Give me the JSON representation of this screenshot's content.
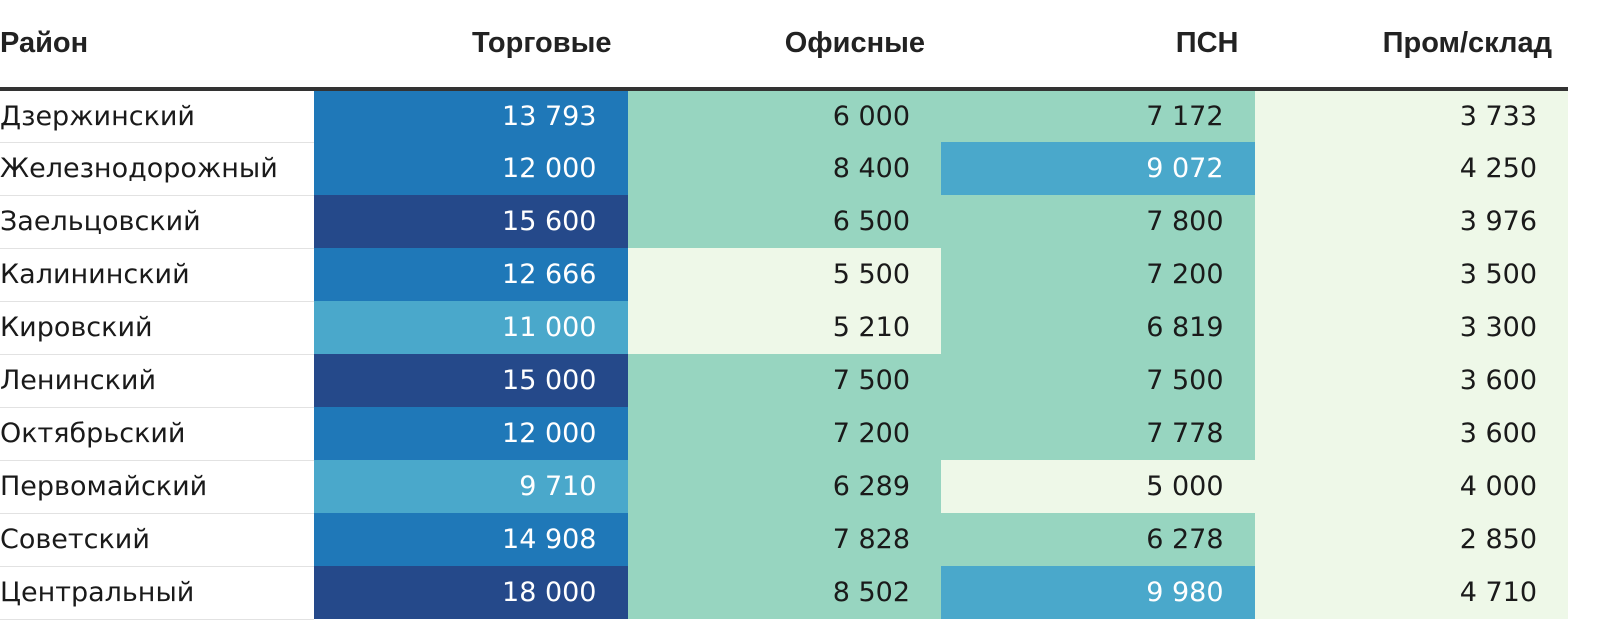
{
  "chart_data": {
    "type": "table",
    "columns": [
      "Район",
      "Торговые",
      "Офисные",
      "ПСН",
      "Пром/склад"
    ],
    "rows": [
      {
        "district": "Дзержинский",
        "values": [
          13793,
          6000,
          7172,
          3733
        ],
        "labels": [
          "13 793",
          "6 000",
          "7 172",
          "3 733"
        ]
      },
      {
        "district": "Железнодорожный",
        "values": [
          12000,
          8400,
          9072,
          4250
        ],
        "labels": [
          "12 000",
          "8 400",
          "9 072",
          "4 250"
        ]
      },
      {
        "district": "Заельцовский",
        "values": [
          15600,
          6500,
          7800,
          3976
        ],
        "labels": [
          "15 600",
          "6 500",
          "7 800",
          "3 976"
        ]
      },
      {
        "district": "Калининский",
        "values": [
          12666,
          5500,
          7200,
          3500
        ],
        "labels": [
          "12 666",
          "5 500",
          "7 200",
          "3 500"
        ]
      },
      {
        "district": "Кировский",
        "values": [
          11000,
          5210,
          6819,
          3300
        ],
        "labels": [
          "11 000",
          "5 210",
          "6 819",
          "3 300"
        ]
      },
      {
        "district": "Ленинский",
        "values": [
          15000,
          7500,
          7500,
          3600
        ],
        "labels": [
          "15 000",
          "7 500",
          "7 500",
          "3 600"
        ]
      },
      {
        "district": "Октябрьский",
        "values": [
          12000,
          7200,
          7778,
          3600
        ],
        "labels": [
          "12 000",
          "7 200",
          "7 778",
          "3 600"
        ]
      },
      {
        "district": "Первомайский",
        "values": [
          9710,
          6289,
          5000,
          4000
        ],
        "labels": [
          "9 710",
          "6 289",
          "5 000",
          "4 000"
        ]
      },
      {
        "district": "Советский",
        "values": [
          14908,
          7828,
          6278,
          2850
        ],
        "labels": [
          "14 908",
          "7 828",
          "6 278",
          "2 850"
        ]
      },
      {
        "district": "Центральный",
        "values": [
          18000,
          8502,
          9980,
          4710
        ],
        "labels": [
          "18 000",
          "8 502",
          "9 980",
          "4 710"
        ]
      }
    ],
    "color_scale": {
      "thresholds": [
        6000,
        9000,
        12000,
        15000
      ],
      "colors": [
        "#eef8e8",
        "#97d5c0",
        "#4aa8cb",
        "#1f78b8",
        "#25498a"
      ],
      "text_colors": [
        "#1a1a1a",
        "#1a1a1a",
        "#ffffff",
        "#ffffff",
        "#ffffff"
      ]
    }
  }
}
